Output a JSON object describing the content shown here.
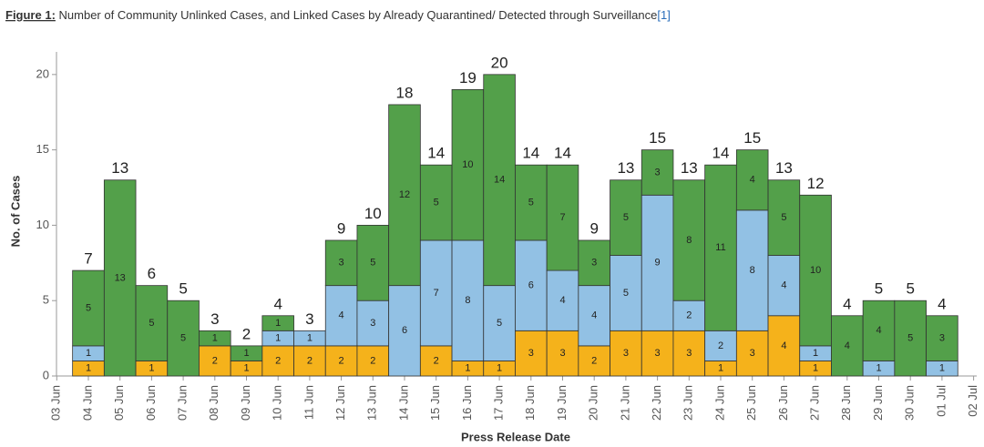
{
  "chart_data": {
    "type": "stacked-bar",
    "title": {
      "label": "Figure 1:",
      "text": " Number of Community Unlinked Cases, and Linked Cases by Already Quarantined/ Detected through Surveillance",
      "ref": "[1]"
    },
    "x_label": "Press Release Date",
    "y_label": "No. of Cases",
    "categories": [
      "03 Jun",
      "04 Jun",
      "05 Jun",
      "06 Jun",
      "07 Jun",
      "08 Jun",
      "09 Jun",
      "10 Jun",
      "11 Jun",
      "12 Jun",
      "13 Jun",
      "14 Jun",
      "15 Jun",
      "16 Jun",
      "17 Jun",
      "18 Jun",
      "19 Jun",
      "20 Jun",
      "21 Jun",
      "22 Jun",
      "23 Jun",
      "24 Jun",
      "25 Jun",
      "26 Jun",
      "27 Jun",
      "28 Jun",
      "29 Jun",
      "30 Jun",
      "01 Jul",
      "02 Jul"
    ],
    "series": [
      {
        "color": "#f5b21b",
        "values": [
          null,
          1,
          0,
          1,
          0,
          2,
          1,
          2,
          2,
          2,
          2,
          0,
          2,
          1,
          1,
          3,
          3,
          2,
          3,
          3,
          3,
          1,
          3,
          4,
          1,
          0,
          0,
          0,
          0,
          null
        ]
      },
      {
        "color": "#92c1e4",
        "values": [
          null,
          1,
          0,
          0,
          0,
          0,
          0,
          1,
          1,
          4,
          3,
          6,
          7,
          8,
          5,
          6,
          4,
          4,
          5,
          9,
          2,
          2,
          8,
          4,
          1,
          0,
          1,
          0,
          1,
          null
        ]
      },
      {
        "color": "#53a04a",
        "values": [
          null,
          5,
          13,
          5,
          5,
          1,
          1,
          1,
          0,
          3,
          5,
          12,
          5,
          10,
          14,
          5,
          7,
          3,
          5,
          3,
          8,
          11,
          4,
          5,
          10,
          4,
          4,
          5,
          3,
          null
        ]
      }
    ],
    "totals": [
      null,
      7,
      13,
      6,
      5,
      3,
      2,
      4,
      3,
      9,
      10,
      18,
      14,
      19,
      20,
      14,
      14,
      9,
      13,
      15,
      13,
      14,
      15,
      13,
      12,
      4,
      5,
      5,
      4,
      null
    ],
    "ylim": [
      0,
      21.5
    ],
    "yticks": [
      0,
      5,
      10,
      15,
      20
    ]
  }
}
